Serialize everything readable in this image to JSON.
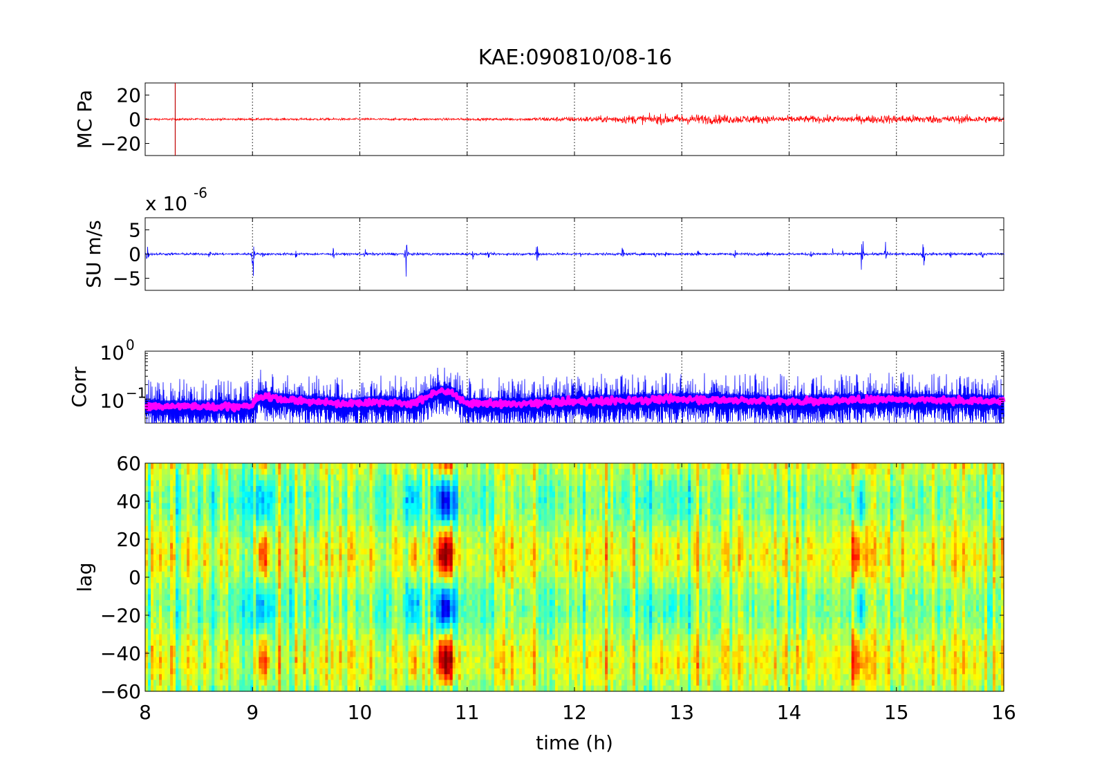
{
  "chart_data": [
    {
      "panel": "pressure",
      "type": "line",
      "title": "KAE:090810/08-16",
      "ylabel": "MC Pa",
      "xlim": [
        8,
        16
      ],
      "ylim": [
        -30,
        30
      ],
      "yticks": [
        -20,
        0,
        20
      ],
      "grid_x": [
        9,
        10,
        11,
        12,
        13,
        14,
        15
      ],
      "marker_x": 8.28,
      "color": "#ff0000",
      "envelope": {
        "x": [
          8,
          8.5,
          9,
          9.5,
          10,
          10.5,
          11,
          11.5,
          11.7,
          12,
          12.2,
          12.5,
          13,
          13.5,
          14,
          14.5,
          15,
          15.5,
          16
        ],
        "amplitude": [
          1.2,
          1.2,
          1.2,
          1.4,
          1.3,
          1.3,
          1.4,
          1.6,
          2.5,
          3.0,
          3.5,
          5.0,
          6.0,
          5.0,
          4.0,
          4.2,
          5.2,
          4.5,
          4.2
        ]
      }
    },
    {
      "panel": "velocity",
      "type": "line",
      "ylabel": "SU m/s",
      "exponent_label": "x 10",
      "exponent_power": "-6",
      "xlim": [
        8,
        16
      ],
      "ylim": [
        -7.5,
        7.5
      ],
      "yticks": [
        -5,
        0,
        5
      ],
      "grid_x": [
        9,
        10,
        11,
        12,
        13,
        14,
        15
      ],
      "color": "#0000ff",
      "bursts": [
        {
          "x": 8.02,
          "a": 2.5
        },
        {
          "x": 8.6,
          "a": 1.5
        },
        {
          "x": 9.0,
          "a": 7.0
        },
        {
          "x": 9.1,
          "a": 1.2
        },
        {
          "x": 9.4,
          "a": 1.5
        },
        {
          "x": 9.75,
          "a": 2.0
        },
        {
          "x": 10.05,
          "a": 1.3
        },
        {
          "x": 10.43,
          "a": 6.0
        },
        {
          "x": 10.6,
          "a": 1.2
        },
        {
          "x": 11.05,
          "a": 1.5
        },
        {
          "x": 11.2,
          "a": 1.2
        },
        {
          "x": 11.65,
          "a": 5.0
        },
        {
          "x": 12.05,
          "a": 2.0
        },
        {
          "x": 12.45,
          "a": 2.5
        },
        {
          "x": 12.75,
          "a": 1.5
        },
        {
          "x": 12.85,
          "a": 1.5
        },
        {
          "x": 13.15,
          "a": 2.0
        },
        {
          "x": 13.5,
          "a": 2.5
        },
        {
          "x": 13.8,
          "a": 1.2
        },
        {
          "x": 14.2,
          "a": 2.0
        },
        {
          "x": 14.4,
          "a": 1.3
        },
        {
          "x": 14.5,
          "a": 1.3
        },
        {
          "x": 14.68,
          "a": 5.0
        },
        {
          "x": 14.9,
          "a": 5.5
        },
        {
          "x": 15.25,
          "a": 6.0
        },
        {
          "x": 15.5,
          "a": 1.3
        },
        {
          "x": 15.8,
          "a": 1.8
        }
      ]
    },
    {
      "panel": "correlation",
      "type": "line",
      "ylabel": "Corr",
      "xlim": [
        8,
        16
      ],
      "ylim_log10": [
        -1.5,
        0
      ],
      "ytick_labels": [
        {
          "base": "10",
          "power": "0",
          "log10": 0
        },
        {
          "base": "10",
          "power": "−1",
          "log10": -1
        }
      ],
      "grid_x": [
        9,
        10,
        11,
        12,
        13,
        14,
        15
      ],
      "series": [
        {
          "color": "#0000ff",
          "style": "raw"
        },
        {
          "color": "#ff00ff",
          "style": "smoothed"
        }
      ],
      "level": {
        "x": [
          8,
          9,
          9.05,
          9.5,
          9.9,
          10.2,
          10.5,
          10.7,
          10.85,
          11,
          11.5,
          12,
          13,
          14,
          15,
          16
        ],
        "log10": [
          -1.15,
          -1.15,
          -0.95,
          -1.05,
          -1.1,
          -1.05,
          -1.1,
          -0.85,
          -0.85,
          -1.1,
          -1.1,
          -1.05,
          -1.0,
          -1.05,
          -1.0,
          -1.05
        ]
      }
    },
    {
      "panel": "lag",
      "type": "heatmap",
      "ylabel": "lag",
      "xlabel": "time (h)",
      "xlim": [
        8,
        16
      ],
      "ylim": [
        -60,
        60
      ],
      "yticks": [
        -60,
        -40,
        -20,
        0,
        20,
        40,
        60
      ],
      "xticks": [
        8,
        9,
        10,
        11,
        12,
        13,
        14,
        15,
        16
      ],
      "colormap": [
        "#00008f",
        "#0000ff",
        "#0080ff",
        "#00ffff",
        "#80ff80",
        "#ffff00",
        "#ff8000",
        "#ff0000",
        "#800000"
      ],
      "features": [
        {
          "x": 10.8,
          "half_width": 0.1,
          "peak": 0.9
        },
        {
          "x": 9.1,
          "half_width": 0.08,
          "peak": 0.5
        },
        {
          "x": 10.5,
          "half_width": 0.07,
          "peak": 0.4
        },
        {
          "x": 12.9,
          "half_width": 0.4,
          "peak": 0.2
        },
        {
          "x": 14.65,
          "half_width": 0.1,
          "peak": 0.4
        }
      ]
    }
  ]
}
